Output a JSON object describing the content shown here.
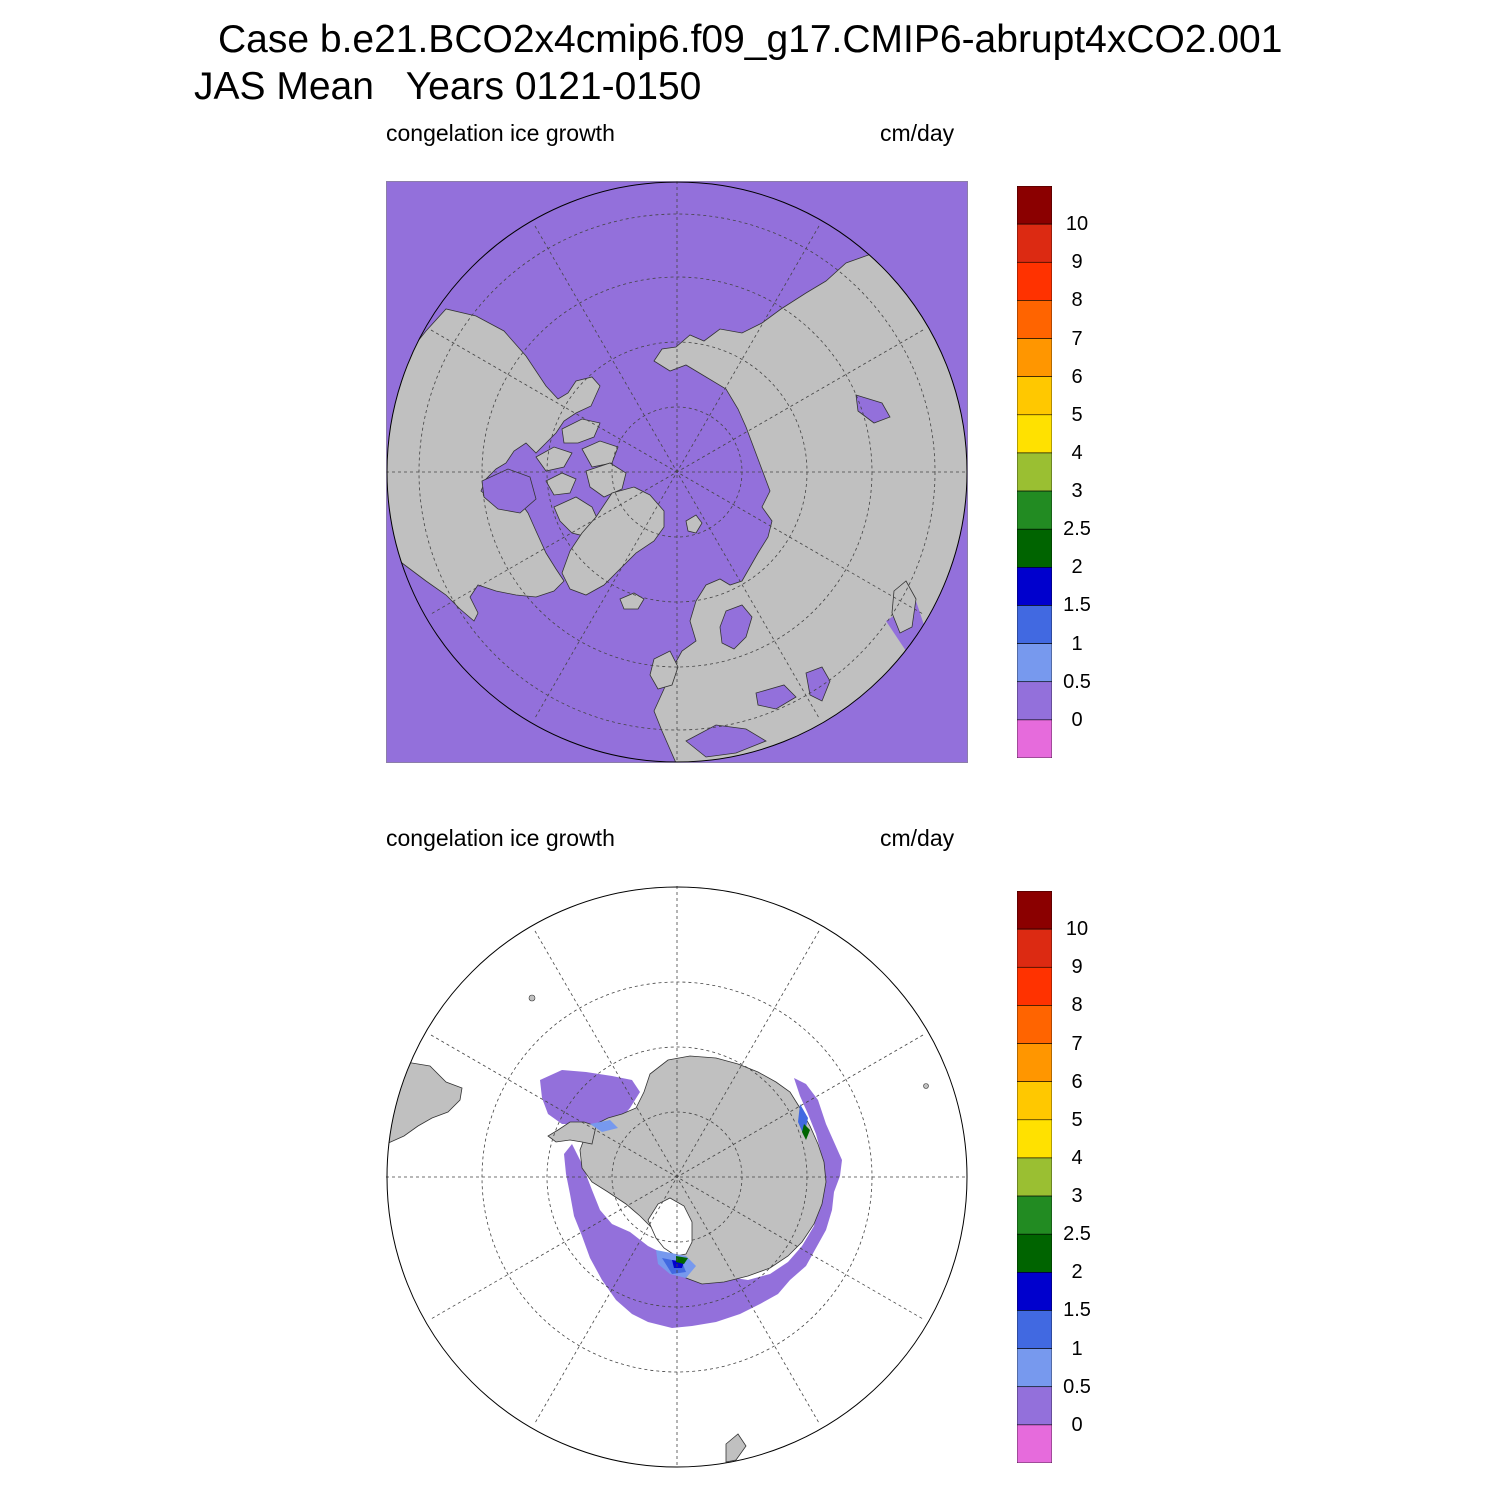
{
  "title": {
    "line1": "Case b.e21.BCO2x4cmip6.f09_g17.CMIP6-abrupt4xCO2.001",
    "line2": "JAS Mean   Years 0121-0150"
  },
  "panels": [
    {
      "id": "north",
      "variable": "congelation ice growth",
      "units": "cm/day",
      "hemisphere": "Northern"
    },
    {
      "id": "south",
      "variable": "congelation ice growth",
      "units": "cm/day",
      "hemisphere": "Southern"
    }
  ],
  "colorbar": {
    "labels": [
      "10",
      "9",
      "8",
      "7",
      "6",
      "5",
      "4",
      "3",
      "2.5",
      "2",
      "1.5",
      "1",
      "0.5",
      "0"
    ],
    "colors": [
      "#8b0000",
      "#dc2a12",
      "#ff3200",
      "#ff6400",
      "#ff9600",
      "#ffc800",
      "#ffe100",
      "#9abf32",
      "#228b22",
      "#006400",
      "#0000cd",
      "#4169e1",
      "#7799ee",
      "#9370db",
      "#e66bdc"
    ]
  },
  "map_colors": {
    "land": "#c0c0c0",
    "ocean_ice_zero": "#9370db",
    "level_0_5": "#7799ee",
    "level_1": "#4169e1",
    "level_1_5": "#0000cd",
    "level_2": "#006400",
    "level_2_5": "#228b22"
  }
}
